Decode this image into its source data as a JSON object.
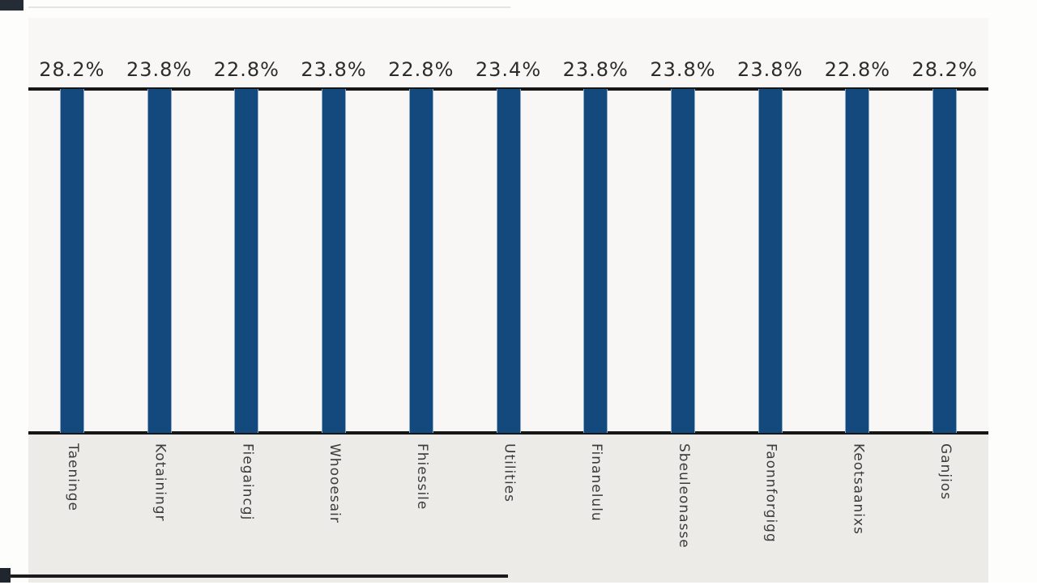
{
  "chart": {
    "background": "#f8f7f5",
    "band_background": "#edebe8",
    "axis_line_color": "#161616",
    "bar_color": "#14497e",
    "bar_edge_color": "#8fa9c8",
    "value_label_color": "#2c2c2c",
    "category_label_color": "#3b3b3b"
  },
  "chart_data": {
    "type": "bar",
    "orientation": "vertical",
    "title": "",
    "xlabel": "",
    "ylabel": "",
    "ylim": [
      0,
      30
    ],
    "grid": false,
    "legend": false,
    "categories": [
      "Taeninge",
      "Kotainingr",
      "Fiegaincgj",
      "Whooesair",
      "Fhiessile",
      "Utilities",
      "Finanelulu",
      "Sbeuleonasse",
      "Faonnforgigg",
      "Keotsaanixs",
      "Ganjios"
    ],
    "values": [
      28.2,
      23.8,
      22.8,
      23.8,
      22.8,
      23.4,
      23.8,
      23.8,
      23.8,
      22.8,
      28.2
    ],
    "value_labels": [
      "28.2%",
      "23.8%",
      "22.8%",
      "23.8%",
      "22.8%",
      "23.4%",
      "23.8%",
      "23.8%",
      "23.8%",
      "22.8%",
      "28.2%"
    ]
  }
}
